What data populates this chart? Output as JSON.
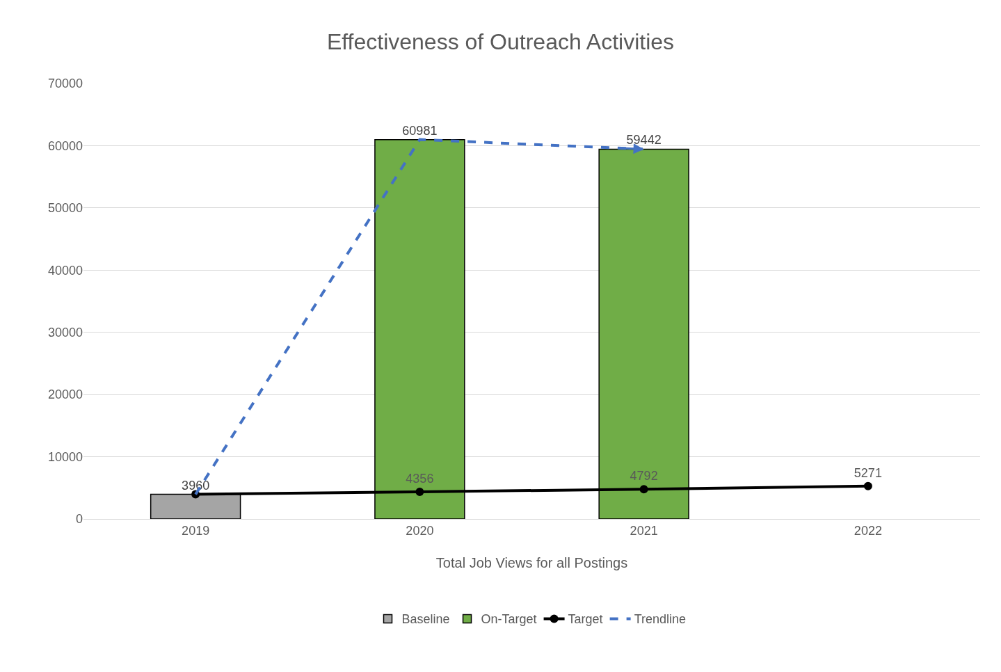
{
  "chart_data": {
    "type": "bar",
    "title": "Effectiveness of Outreach Activities",
    "xlabel": "Total Job Views for all Postings",
    "categories": [
      "2019",
      "2020",
      "2021",
      "2022"
    ],
    "series": [
      {
        "name": "Baseline",
        "color": "#a5a5a5",
        "values": [
          3960,
          null,
          null,
          null
        ],
        "value_labels": [
          "3960",
          null,
          null,
          null
        ]
      },
      {
        "name": "On-Target",
        "color": "#70ad47",
        "values": [
          null,
          60981,
          59442,
          null
        ],
        "value_labels": [
          null,
          "60981",
          "59442",
          null
        ]
      },
      {
        "name": "Target",
        "type": "line",
        "color": "#000000",
        "marker": "circle",
        "line_style": "solid",
        "values": [
          3960,
          4356,
          4792,
          5271
        ],
        "value_labels": [
          null,
          "4356",
          "4792",
          "5271"
        ]
      },
      {
        "name": "Trendline",
        "type": "line",
        "color": "#4472c4",
        "marker": "none",
        "line_style": "dashed",
        "values": [
          3960,
          60981,
          59442,
          null
        ]
      }
    ],
    "ylim": [
      0,
      70000
    ],
    "yticks": [
      0,
      10000,
      20000,
      30000,
      40000,
      50000,
      60000,
      70000
    ],
    "grid": "y",
    "legend": "bottom"
  }
}
